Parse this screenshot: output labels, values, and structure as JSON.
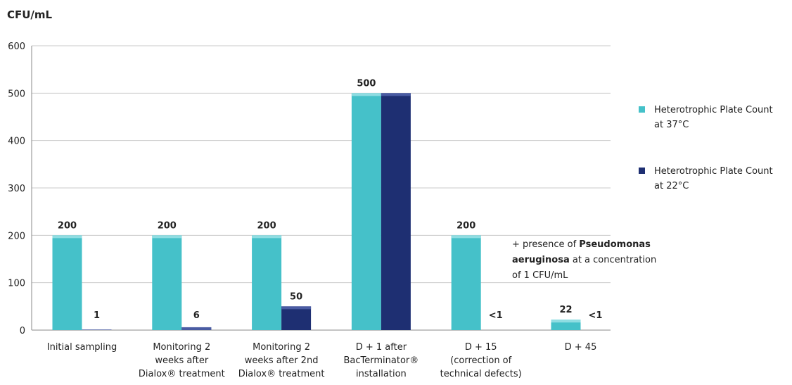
{
  "chart_data": {
    "type": "bar",
    "ylabel": "CFU/mL",
    "ylim": [
      0,
      600
    ],
    "yticks": [
      "0",
      "100",
      "200",
      "300",
      "400",
      "500",
      "600"
    ],
    "grid": true,
    "legend_position": "right",
    "categories": [
      [
        "Initial sampling"
      ],
      [
        "Monitoring 2",
        "weeks after",
        "Dialox® treatment"
      ],
      [
        "Monitoring 2",
        "weeks after  2nd",
        "Dialox® treatment"
      ],
      [
        "D + 1 after",
        "BacTerminator®",
        "installation"
      ],
      [
        "D + 15",
        "(correction of",
        "technical defects)"
      ],
      [
        "D + 45"
      ]
    ],
    "series": [
      {
        "name": [
          "Heterotrophic Plate Count",
          "at 37°C"
        ],
        "color": "#45c1c9",
        "top_color": "#8fdde2",
        "values": [
          200,
          200,
          200,
          500,
          200,
          22
        ],
        "labels": [
          "200",
          "200",
          "200",
          "500",
          "200",
          "22"
        ]
      },
      {
        "name": [
          "Heterotrophic Plate Count",
          "at 22°C"
        ],
        "color": "#1e2f72",
        "top_color": "#4a5ca3",
        "values": [
          1,
          6,
          50,
          500,
          0,
          0
        ],
        "labels": [
          "1",
          "6",
          "50",
          "",
          "<1",
          "<1"
        ]
      }
    ],
    "annotation": {
      "category_index": 4,
      "lines": [
        [
          {
            "text": "+ presence of ",
            "bold": false
          },
          {
            "text": "Pseudomonas",
            "bold": true
          }
        ],
        [
          {
            "text": "aeruginosa",
            "bold": true
          },
          {
            "text": " at a concentration",
            "bold": false
          }
        ],
        [
          {
            "text": "of 1 CFU/mL",
            "bold": false
          }
        ]
      ]
    }
  }
}
